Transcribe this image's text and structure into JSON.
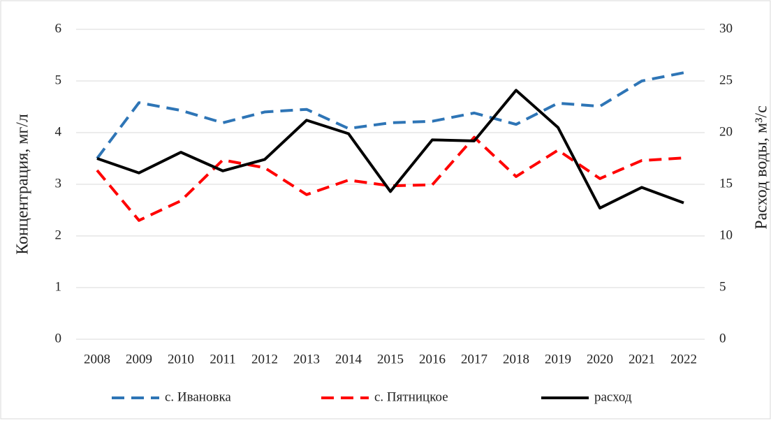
{
  "chart_data": {
    "type": "line",
    "y_label": "Концентрация, мг/л",
    "y2_label": "Расход воды, м³/с",
    "categories": [
      "2008",
      "2009",
      "2010",
      "2011",
      "2012",
      "2013",
      "2014",
      "2015",
      "2016",
      "2017",
      "2018",
      "2019",
      "2020",
      "2021",
      "2022"
    ],
    "series": [
      {
        "name": "с. Ивановка",
        "color": "#2e75b6",
        "dash": true,
        "values": [
          3.5,
          4.58,
          4.43,
          4.19,
          4.4,
          4.45,
          4.08,
          4.19,
          4.22,
          4.38,
          4.16,
          4.57,
          4.51,
          5.0,
          5.16
        ]
      },
      {
        "name": "с. Пятницкое",
        "color": "#ff0000",
        "dash": true,
        "values": [
          3.27,
          2.3,
          2.68,
          3.47,
          3.32,
          2.8,
          3.08,
          2.97,
          2.99,
          3.91,
          3.15,
          3.66,
          3.11,
          3.46,
          3.51
        ]
      },
      {
        "name": "расход",
        "color": "#000000",
        "dash": false,
        "axis": "y2",
        "values": [
          17.5,
          16.1,
          18.1,
          16.3,
          17.4,
          21.2,
          19.9,
          14.3,
          19.3,
          19.2,
          24.1,
          20.5,
          12.7,
          14.7,
          13.2
        ]
      }
    ],
    "ylim": [
      0,
      6
    ],
    "yticks": [
      0,
      1,
      2,
      3,
      4,
      5,
      6
    ],
    "y2lim": [
      0,
      30
    ],
    "y2ticks": [
      0,
      5,
      10,
      15,
      20,
      25,
      30
    ],
    "grid": true,
    "legend": "bottom"
  }
}
